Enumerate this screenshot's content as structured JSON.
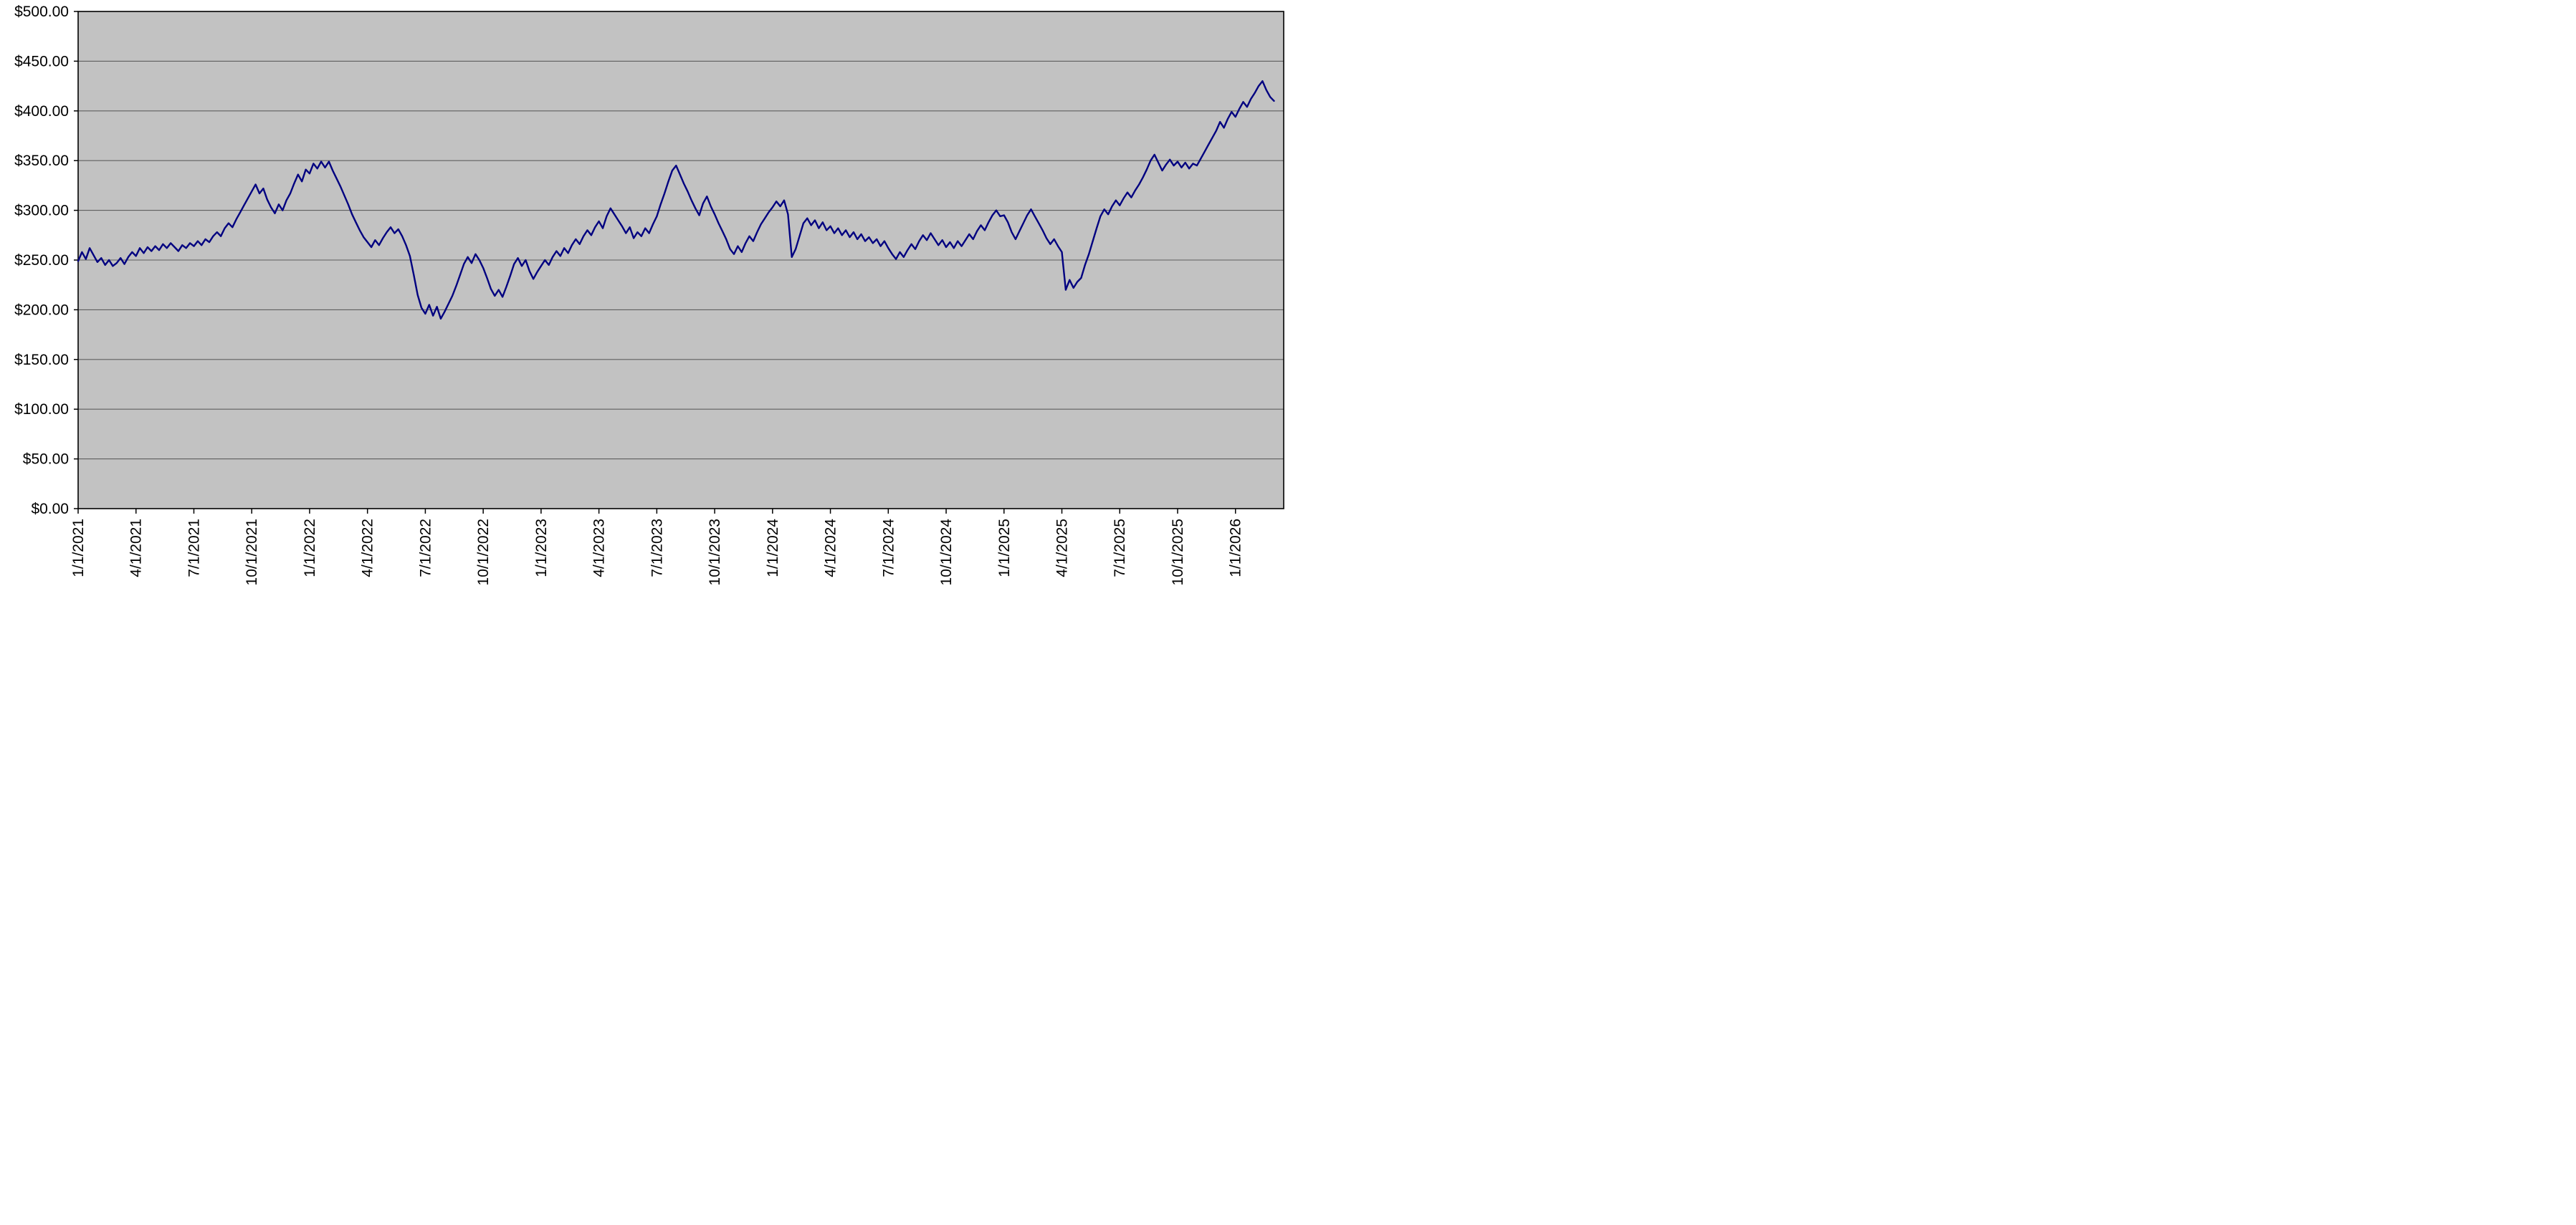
{
  "chart_data": {
    "type": "line",
    "x_unit": "months since 1/1/2021",
    "x_range": [
      0,
      62.5
    ],
    "y_range": [
      0,
      500
    ],
    "grid": "horizontal",
    "plot_area_color": "#c2c2c2",
    "grid_color": "#5f5f5f",
    "axis_color": "#000000",
    "y_ticks": [
      {
        "v": 0,
        "label": "$0.00"
      },
      {
        "v": 50,
        "label": "$50.00"
      },
      {
        "v": 100,
        "label": "$100.00"
      },
      {
        "v": 150,
        "label": "$150.00"
      },
      {
        "v": 200,
        "label": "$200.00"
      },
      {
        "v": 250,
        "label": "$250.00"
      },
      {
        "v": 300,
        "label": "$300.00"
      },
      {
        "v": 350,
        "label": "$350.00"
      },
      {
        "v": 400,
        "label": "$400.00"
      },
      {
        "v": 450,
        "label": "$450.00"
      },
      {
        "v": 500,
        "label": "$500.00"
      }
    ],
    "x_ticks": [
      {
        "m": 0,
        "label": "1/1/2021"
      },
      {
        "m": 3,
        "label": "4/1/2021"
      },
      {
        "m": 6,
        "label": "7/1/2021"
      },
      {
        "m": 9,
        "label": "10/1/2021"
      },
      {
        "m": 12,
        "label": "1/1/2022"
      },
      {
        "m": 15,
        "label": "4/1/2022"
      },
      {
        "m": 18,
        "label": "7/1/2022"
      },
      {
        "m": 21,
        "label": "10/1/2022"
      },
      {
        "m": 24,
        "label": "1/1/2023"
      },
      {
        "m": 27,
        "label": "4/1/2023"
      },
      {
        "m": 30,
        "label": "7/1/2023"
      },
      {
        "m": 33,
        "label": "10/1/2023"
      },
      {
        "m": 36,
        "label": "1/1/2024"
      },
      {
        "m": 39,
        "label": "4/1/2024"
      },
      {
        "m": 42,
        "label": "7/1/2024"
      },
      {
        "m": 45,
        "label": "10/1/2024"
      },
      {
        "m": 48,
        "label": "1/1/2025"
      },
      {
        "m": 51,
        "label": "4/1/2025"
      },
      {
        "m": 54,
        "label": "7/1/2025"
      },
      {
        "m": 57,
        "label": "10/1/2025"
      },
      {
        "m": 60,
        "label": "1/1/2026"
      }
    ],
    "series": [
      {
        "color": "#000080",
        "m_start": 0,
        "m_step": 0.2,
        "values": [
          249,
          258,
          251,
          262,
          255,
          248,
          252,
          245,
          250,
          244,
          247,
          252,
          246,
          253,
          258,
          254,
          262,
          257,
          263,
          259,
          264,
          260,
          266,
          262,
          267,
          263,
          259,
          265,
          262,
          267,
          264,
          269,
          265,
          271,
          268,
          274,
          278,
          274,
          282,
          287,
          283,
          291,
          298,
          305,
          312,
          319,
          326,
          317,
          322,
          311,
          303,
          297,
          306,
          300,
          310,
          317,
          327,
          336,
          329,
          341,
          337,
          347,
          342,
          349,
          343,
          349,
          340,
          332,
          324,
          315,
          306,
          296,
          288,
          280,
          273,
          268,
          263,
          270,
          265,
          272,
          278,
          283,
          277,
          281,
          274,
          265,
          254,
          235,
          215,
          202,
          196,
          205,
          194,
          203,
          191,
          198,
          206,
          214,
          224,
          235,
          246,
          253,
          247,
          256,
          250,
          242,
          232,
          221,
          214,
          220,
          213,
          223,
          234,
          246,
          252,
          244,
          250,
          239,
          231,
          238,
          244,
          250,
          245,
          253,
          259,
          254,
          262,
          257,
          265,
          271,
          266,
          274,
          280,
          275,
          283,
          289,
          282,
          294,
          302,
          296,
          290,
          284,
          277,
          283,
          272,
          278,
          274,
          282,
          277,
          286,
          294,
          306,
          317,
          329,
          340,
          345,
          336,
          327,
          319,
          310,
          302,
          295,
          307,
          314,
          304,
          296,
          287,
          279,
          271,
          261,
          256,
          264,
          258,
          267,
          274,
          269,
          278,
          286,
          292,
          298,
          303,
          309,
          304,
          310,
          296,
          253,
          261,
          274,
          287,
          292,
          285,
          290,
          282,
          288,
          280,
          284,
          277,
          282,
          275,
          280,
          273,
          278,
          271,
          276,
          269,
          273,
          267,
          271,
          264,
          269,
          262,
          256,
          251,
          258,
          253,
          260,
          266,
          261,
          269,
          275,
          270,
          277,
          271,
          265,
          270,
          263,
          268,
          262,
          269,
          264,
          270,
          276,
          271,
          279,
          285,
          280,
          288,
          295,
          300,
          294,
          295,
          288,
          278,
          271,
          279,
          287,
          295,
          301,
          294,
          287,
          280,
          272,
          266,
          271,
          264,
          258,
          220,
          230,
          222,
          228,
          232,
          245,
          256,
          269,
          282,
          294,
          301,
          296,
          304,
          310,
          305,
          312,
          318,
          313,
          320,
          326,
          333,
          341,
          350,
          356,
          348,
          340,
          346,
          351,
          345,
          349,
          343,
          348,
          342,
          347,
          345,
          352,
          359,
          366,
          373,
          380,
          389,
          383,
          392,
          399,
          394,
          402,
          409,
          404,
          412,
          418,
          425,
          430,
          421,
          414,
          410
        ]
      }
    ]
  }
}
